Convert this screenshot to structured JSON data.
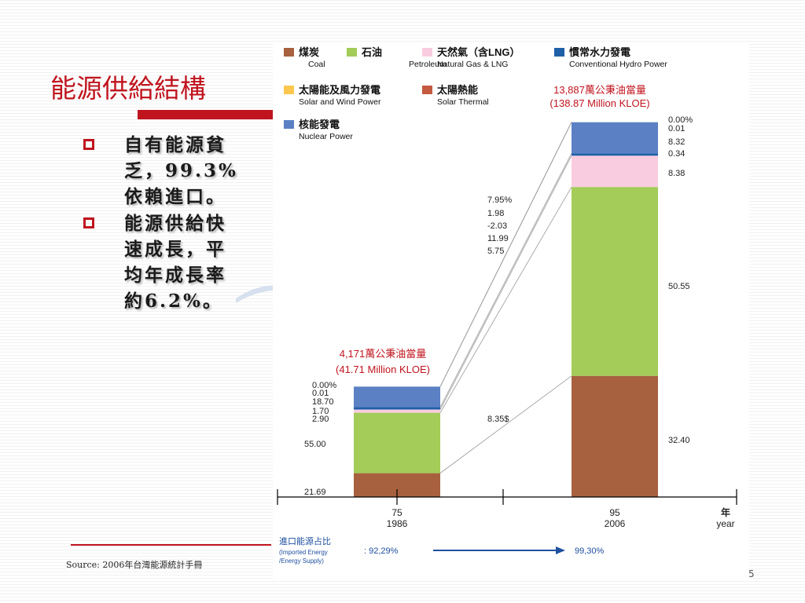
{
  "slide": {
    "title": "能源供給結構",
    "bullets": [
      {
        "lines": [
          "自有能源貧",
          "乏，99.3%",
          "依賴進口。"
        ]
      },
      {
        "lines": [
          "能源供給快",
          "速成長，平",
          "均年成長率",
          "約6.2%。"
        ]
      }
    ],
    "source": "Source: 2006年台灣能源統計手冊",
    "page_number": "5",
    "colors": {
      "accent": "#c0141e",
      "text": "#1a1a1a"
    }
  },
  "chart_data": {
    "type": "bar",
    "stacked": true,
    "categories": [
      "75\n1986",
      "95\n2006"
    ],
    "category_labels": [
      [
        "75",
        "1986"
      ],
      [
        "95",
        "2006"
      ]
    ],
    "axis_unit": [
      "年",
      "year"
    ],
    "series": [
      {
        "name": "煤炭 Coal",
        "name_zh": "煤炭",
        "name_en": "Coal",
        "color": "#a7613f",
        "values": [
          21.69,
          32.4
        ],
        "labels": [
          "21.69",
          "32.40"
        ]
      },
      {
        "name": "石油 Petroleum",
        "name_zh": "石油",
        "name_en": "Petroleum",
        "color": "#a3cc58",
        "values": [
          55.0,
          50.55
        ],
        "labels": [
          "55.00",
          "50.55"
        ]
      },
      {
        "name": "天然氣（含LNG） Natural Gas & LNG",
        "name_zh": "天然氣（含LNG）",
        "name_en": "Natural Gas & LNG",
        "color": "#f9cce0",
        "values": [
          2.9,
          8.38
        ],
        "labels": [
          "2.90",
          "8.38"
        ]
      },
      {
        "name": "慣常水力發電 Conventional Hydro Power",
        "name_zh": "慣常水力發電",
        "name_en": "Conventional Hydro Power",
        "color": "#1f5fa8",
        "values": [
          1.7,
          0.34
        ],
        "labels": [
          "1.70",
          "0.34"
        ]
      },
      {
        "name": "核能發電 Nuclear Power",
        "name_zh": "核能發電",
        "name_en": "Nuclear Power",
        "color": "#5b80c4",
        "values": [
          18.7,
          8.32
        ],
        "labels": [
          "18.70",
          "8.32"
        ]
      },
      {
        "name": "太陽熱能 Solar Thermal",
        "name_zh": "太陽熱能",
        "name_en": "Solar Thermal",
        "color": "#c45a40",
        "values": [
          0.01,
          0.01
        ],
        "labels": [
          "0.01",
          "0.01"
        ]
      },
      {
        "name": "太陽能及風力發電 Solar and Wind Power",
        "name_zh": "太陽能及風力發電",
        "name_en": "Solar and Wind Power",
        "color": "#fbc74e",
        "values": [
          0.0,
          0.0
        ],
        "labels": [
          "0.00%",
          "0.00%"
        ]
      }
    ],
    "totals": [
      {
        "zh": "4,171萬公秉油當量",
        "en": "(41.71 Million KLOE)"
      },
      {
        "zh": "13,887萬公秉油當量",
        "en": "(138.87 Million KLOE)"
      }
    ],
    "growth_rates": {
      "labels": [
        "7.95%",
        "1.98",
        "-2.03",
        "11.99",
        "5.75"
      ],
      "coal_label": "8.35$"
    },
    "imported_share": {
      "label_zh": "進口能源占比",
      "label_en1": "(Imported Energy",
      "label_en2": "/Energy Supply)",
      "values": [
        92.29,
        99.3
      ],
      "value_labels": [
        ": 92,29%",
        "99,30%"
      ]
    },
    "legend_position": "top",
    "grid": false,
    "ylim": [
      0,
      100
    ]
  }
}
